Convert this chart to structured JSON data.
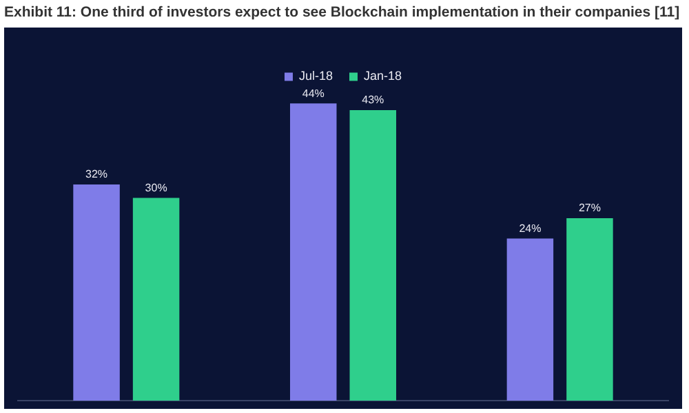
{
  "chart_data": {
    "type": "bar",
    "title": "Exhibit 11: One third of investors expect to see Blockchain implementation in their companies [11]",
    "categories": [
      null,
      null,
      null
    ],
    "series": [
      {
        "name": "Jul-18",
        "color": "#7f7ce8",
        "values": [
          32,
          44,
          24
        ],
        "value_labels": [
          "32%",
          "44%",
          "24%"
        ]
      },
      {
        "name": "Jan-18",
        "color": "#2fcf8c",
        "values": [
          30,
          43,
          27
        ],
        "value_labels": [
          "30%",
          "43%",
          "27%"
        ]
      }
    ],
    "tick_labels": false,
    "grid": false,
    "legend": "top"
  }
}
